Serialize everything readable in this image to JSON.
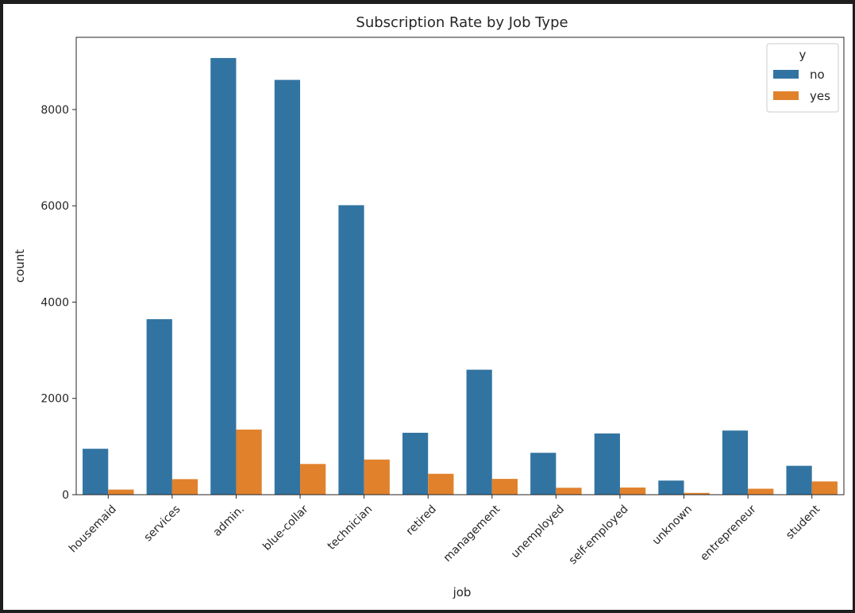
{
  "chart_data": {
    "type": "bar",
    "title": "Subscription Rate by Job Type",
    "xlabel": "job",
    "ylabel": "count",
    "categories": [
      "housemaid",
      "services",
      "admin.",
      "blue-collar",
      "technician",
      "retired",
      "management",
      "unemployed",
      "self-employed",
      "unknown",
      "entrepreneur",
      "student"
    ],
    "series": [
      {
        "name": "no",
        "color": "#3274a1",
        "values": [
          954,
          3646,
          9070,
          8616,
          6013,
          1286,
          2596,
          870,
          1272,
          293,
          1332,
          600
        ]
      },
      {
        "name": "yes",
        "color": "#e1812c",
        "values": [
          106,
          323,
          1352,
          638,
          730,
          434,
          328,
          144,
          149,
          37,
          124,
          275
        ]
      }
    ],
    "ylim": [
      0,
      9500
    ],
    "yticks": [
      0,
      2000,
      4000,
      6000,
      8000
    ],
    "legend": {
      "title": "y",
      "position": "top-right"
    },
    "grid": false
  }
}
